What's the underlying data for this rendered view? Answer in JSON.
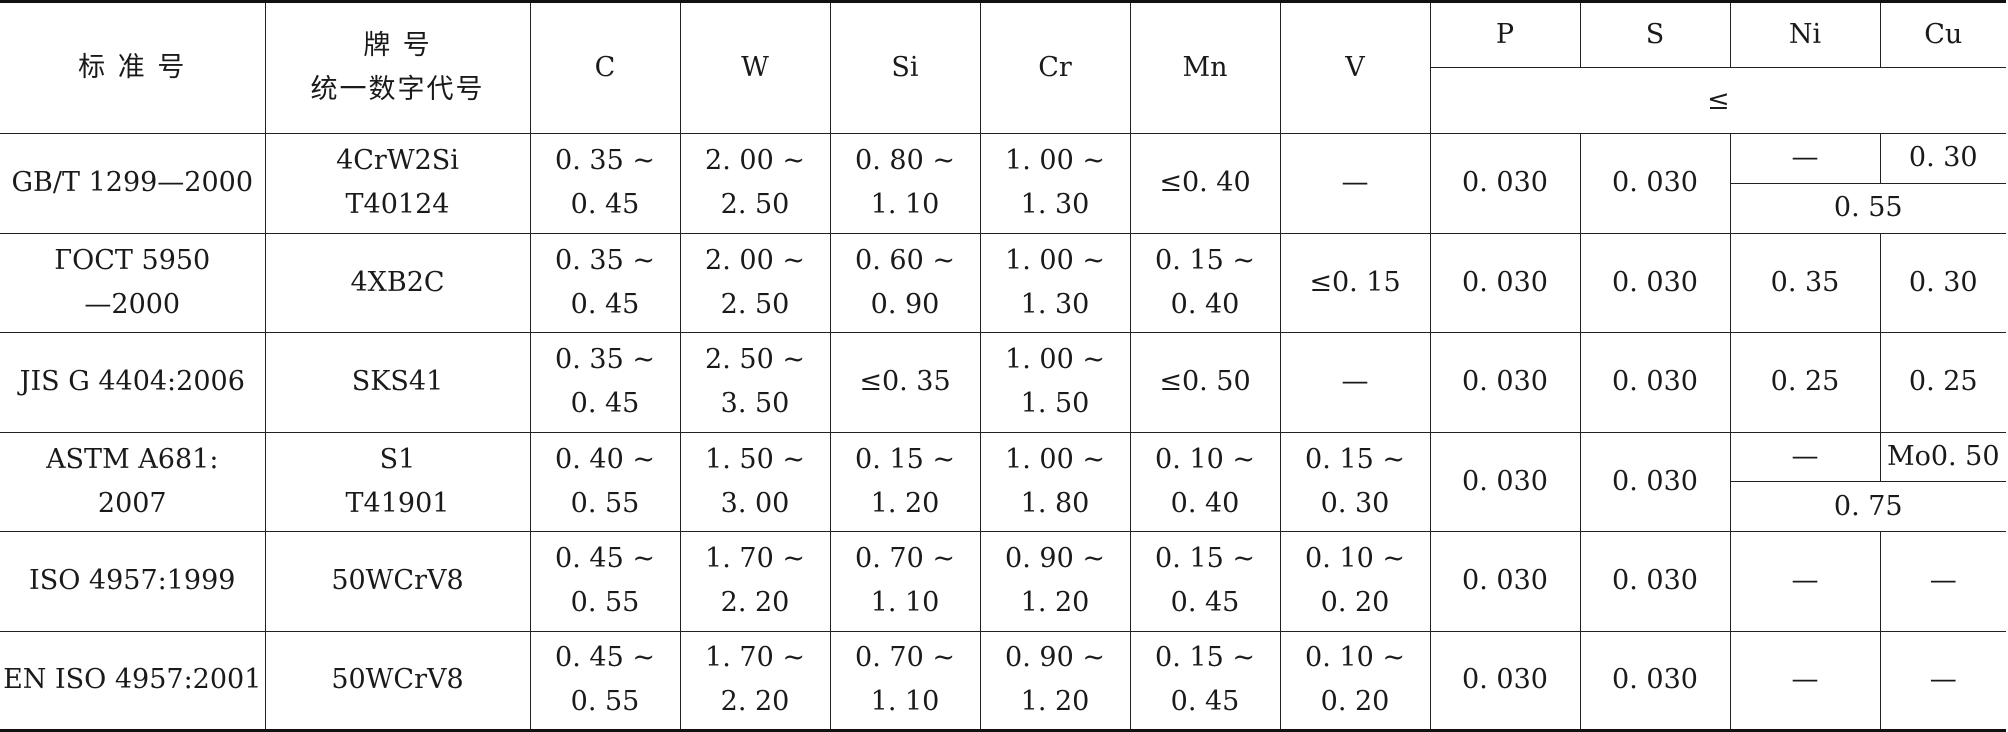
{
  "header": {
    "standard": "标 准 号",
    "grade_line1": "牌 号",
    "grade_line2": "统一数字代号",
    "elements": [
      "C",
      "W",
      "Si",
      "Cr",
      "Mn",
      "V"
    ],
    "max_elements": [
      "P",
      "S",
      "Ni",
      "Cu"
    ],
    "max_symbol": "≤"
  },
  "rows": [
    {
      "standard": [
        "GB/T 1299—2000"
      ],
      "grade": [
        "4CrW2Si",
        "T40124"
      ],
      "C": [
        "0. 35 ~",
        "0. 45"
      ],
      "W": [
        "2. 00 ~",
        "2. 50"
      ],
      "Si": [
        "0. 80 ~",
        "1. 10"
      ],
      "Cr": [
        "1. 00 ~",
        "1. 30"
      ],
      "Mn": [
        "≤0. 40"
      ],
      "V": [
        "—"
      ],
      "P": "0. 030",
      "S": "0. 030",
      "Ni": "—",
      "Cu": "0. 30",
      "NiCu": "0. 55"
    },
    {
      "standard": [
        "ГОСТ 5950",
        "—2000"
      ],
      "grade": [
        "4XB2C"
      ],
      "C": [
        "0. 35 ~",
        "0. 45"
      ],
      "W": [
        "2. 00 ~",
        "2. 50"
      ],
      "Si": [
        "0. 60 ~",
        "0. 90"
      ],
      "Cr": [
        "1. 00 ~",
        "1. 30"
      ],
      "Mn": [
        "0. 15 ~",
        "0. 40"
      ],
      "V": [
        "≤0. 15"
      ],
      "P": "0. 030",
      "S": "0. 030",
      "Ni": "0. 35",
      "Cu": "0. 30"
    },
    {
      "standard": [
        "JIS G 4404:2006"
      ],
      "grade": [
        "SKS41"
      ],
      "C": [
        "0. 35 ~",
        "0. 45"
      ],
      "W": [
        "2. 50 ~",
        "3. 50"
      ],
      "Si": [
        "≤0. 35"
      ],
      "Cr": [
        "1. 00 ~",
        "1. 50"
      ],
      "Mn": [
        "≤0. 50"
      ],
      "V": [
        "—"
      ],
      "P": "0. 030",
      "S": "0. 030",
      "Ni": "0. 25",
      "Cu": "0. 25"
    },
    {
      "standard": [
        "ASTM A681:",
        "2007"
      ],
      "grade": [
        "S1",
        "T41901"
      ],
      "C": [
        "0. 40 ~",
        "0. 55"
      ],
      "W": [
        "1. 50 ~",
        "3. 00"
      ],
      "Si": [
        "0. 15 ~",
        "1. 20"
      ],
      "Cr": [
        "1. 00 ~",
        "1. 80"
      ],
      "Mn": [
        "0. 10 ~",
        "0. 40"
      ],
      "V": [
        "0. 15 ~",
        "0. 30"
      ],
      "P": "0. 030",
      "S": "0. 030",
      "Ni": "—",
      "Cu": "Mo0. 50",
      "NiCu": "0. 75"
    },
    {
      "standard": [
        "ISO 4957:1999"
      ],
      "grade": [
        "50WCrV8"
      ],
      "C": [
        "0. 45 ~",
        "0. 55"
      ],
      "W": [
        "1. 70 ~",
        "2. 20"
      ],
      "Si": [
        "0. 70 ~",
        "1. 10"
      ],
      "Cr": [
        "0. 90 ~",
        "1. 20"
      ],
      "Mn": [
        "0. 15 ~",
        "0. 45"
      ],
      "V": [
        "0. 10 ~",
        "0. 20"
      ],
      "P": "0. 030",
      "S": "0. 030",
      "Ni": "—",
      "Cu": "—"
    },
    {
      "standard": [
        "EN ISO 4957:2001"
      ],
      "grade": [
        "50WCrV8"
      ],
      "C": [
        "0. 45 ~",
        "0. 55"
      ],
      "W": [
        "1. 70 ~",
        "2. 20"
      ],
      "Si": [
        "0. 70 ~",
        "1. 10"
      ],
      "Cr": [
        "0. 90 ~",
        "1. 20"
      ],
      "Mn": [
        "0. 15 ~",
        "0. 45"
      ],
      "V": [
        "0. 10 ~",
        "0. 20"
      ],
      "P": "0. 030",
      "S": "0. 030",
      "Ni": "—",
      "Cu": "—"
    }
  ]
}
